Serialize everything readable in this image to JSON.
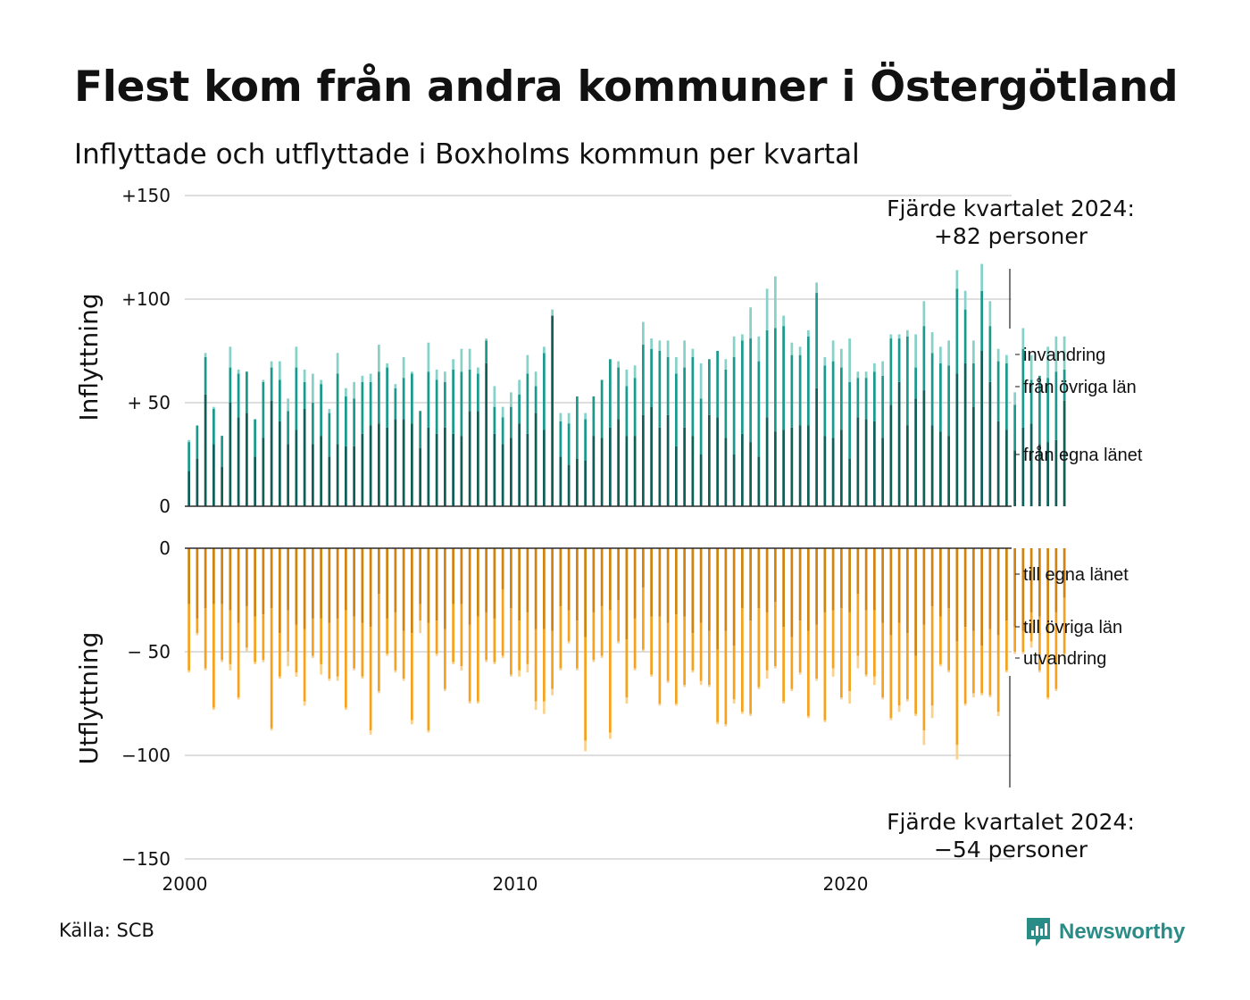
{
  "title": "Flest kom från andra kommuner i Östergötland",
  "subtitle": "Inflyttade och utflyttade i Boxholms kommun per kvartal",
  "source": "Källa: SCB",
  "logo": {
    "text": "Newsworthy",
    "icon": "newsworthy-logo-icon",
    "color": "#2a8c86"
  },
  "annotations": {
    "top_line1": "Fjärde kvartalet 2024:",
    "top_line2": "+82 personer",
    "bottom_line1": "Fjärde kvartalet 2024:",
    "bottom_line2": "−54 personer"
  },
  "chart_data": [
    {
      "type": "bar",
      "stacked": true,
      "ylabel": "Inflyttning",
      "ylim": [
        0,
        150
      ],
      "yticks": [
        0,
        50,
        100,
        150
      ],
      "ytick_labels": [
        "0",
        "+ 50",
        "+100",
        "+150"
      ],
      "grid": true,
      "x_start": 2000.0,
      "x_step": 0.25,
      "legend_placement": "right",
      "colors": {
        "from_own_county": "#0f5e57",
        "from_other_counties": "#1a9a8c",
        "immigration": "#86d2c8"
      },
      "series": [
        {
          "name": "från egna länet",
          "key": "from_own_county",
          "values": [
            17,
            23,
            54,
            30,
            19,
            50,
            43,
            45,
            24,
            33,
            51,
            41,
            30,
            37,
            47,
            30,
            34,
            24,
            30,
            29,
            29,
            35,
            39,
            40,
            38,
            42,
            42,
            40,
            28,
            38,
            35,
            38,
            35,
            34,
            46,
            46,
            69,
            35,
            30,
            33,
            40,
            35,
            45,
            37,
            92,
            24,
            20,
            23,
            22,
            34,
            33,
            38,
            42,
            34,
            34,
            44,
            48,
            38,
            44,
            29,
            38,
            34,
            25,
            44,
            43,
            33,
            25,
            35,
            31,
            24,
            43,
            36,
            37,
            38,
            39,
            39,
            57,
            34,
            33,
            37,
            23,
            43,
            42,
            41,
            33,
            49,
            60,
            39,
            52,
            56,
            39,
            36,
            34,
            64,
            69,
            48,
            75,
            60,
            41,
            37,
            27,
            38,
            40,
            30,
            31,
            32,
            51
          ]
        },
        {
          "name": "från övriga län",
          "key": "from_other_counties",
          "values": [
            14,
            16,
            18,
            17,
            15,
            17,
            21,
            20,
            18,
            27,
            16,
            20,
            16,
            30,
            13,
            20,
            25,
            21,
            34,
            24,
            23,
            25,
            21,
            25,
            29,
            15,
            20,
            24,
            18,
            27,
            26,
            22,
            31,
            31,
            20,
            18,
            11,
            13,
            13,
            15,
            14,
            29,
            13,
            37,
            0,
            17,
            20,
            30,
            20,
            19,
            28,
            33,
            25,
            24,
            28,
            34,
            28,
            37,
            28,
            35,
            29,
            38,
            27,
            27,
            32,
            33,
            47,
            45,
            50,
            46,
            42,
            50,
            50,
            35,
            34,
            43,
            46,
            34,
            37,
            30,
            37,
            19,
            20,
            24,
            30,
            32,
            21,
            43,
            15,
            31,
            35,
            33,
            34,
            41,
            26,
            21,
            29,
            27,
            29,
            32,
            22,
            38,
            21,
            33,
            31,
            33,
            15
          ]
        },
        {
          "name": "invandring",
          "key": "immigration",
          "values": [
            1,
            0,
            2,
            1,
            0,
            10,
            2,
            0,
            0,
            1,
            3,
            9,
            6,
            10,
            6,
            14,
            2,
            2,
            10,
            4,
            8,
            3,
            4,
            13,
            2,
            2,
            10,
            1,
            0,
            14,
            5,
            5,
            5,
            11,
            10,
            3,
            1,
            10,
            5,
            7,
            7,
            9,
            7,
            3,
            3,
            4,
            5,
            0,
            3,
            0,
            0,
            0,
            3,
            8,
            6,
            11,
            5,
            5,
            8,
            8,
            13,
            4,
            17,
            0,
            0,
            5,
            10,
            3,
            15,
            12,
            20,
            25,
            5,
            6,
            4,
            3,
            5,
            4,
            10,
            9,
            21,
            3,
            3,
            4,
            7,
            2,
            2,
            3,
            16,
            12,
            10,
            8,
            12,
            9,
            9,
            11,
            13,
            12,
            6,
            4,
            6,
            10,
            12,
            0,
            15,
            17,
            16
          ]
        }
      ]
    },
    {
      "type": "bar",
      "stacked": true,
      "ylabel": "Utflyttning",
      "ylim": [
        -150,
        0
      ],
      "yticks": [
        0,
        -50,
        -100,
        -150
      ],
      "ytick_labels": [
        "0",
        "− 50",
        "−100",
        "−150"
      ],
      "grid": true,
      "x_start": 2000.0,
      "x_step": 0.25,
      "xticks": [
        2000,
        2010,
        2020
      ],
      "xtick_labels": [
        "2000",
        "2010",
        "2020"
      ],
      "legend_placement": "right",
      "colors": {
        "to_own_county": "#d1830f",
        "to_other_counties": "#f5a21f",
        "emigration": "#f9d18b"
      },
      "series": [
        {
          "name": "till egna länet",
          "key": "to_own_county",
          "values": [
            -27,
            -34,
            -29,
            -27,
            -27,
            -30,
            -36,
            -28,
            -33,
            -32,
            -29,
            -41,
            -30,
            -37,
            -39,
            -34,
            -34,
            -36,
            -34,
            -30,
            -33,
            -36,
            -38,
            -22,
            -34,
            -31,
            -40,
            -41,
            -27,
            -36,
            -35,
            -39,
            -27,
            -27,
            -37,
            -33,
            -31,
            -34,
            -20,
            -29,
            -35,
            -31,
            -39,
            -39,
            -40,
            -28,
            -30,
            -35,
            -43,
            -31,
            -28,
            -30,
            -25,
            -44,
            -34,
            -19,
            -33,
            -33,
            -36,
            -32,
            -33,
            -41,
            -36,
            -40,
            -49,
            -40,
            -47,
            -29,
            -35,
            -29,
            -31,
            -26,
            -38,
            -43,
            -35,
            -40,
            -37,
            -31,
            -30,
            -29,
            -31,
            -22,
            -30,
            -30,
            -36,
            -42,
            -36,
            -41,
            -52,
            -37,
            -28,
            -33,
            -29,
            -45,
            -38,
            -40,
            -47,
            -39,
            -42,
            -35,
            -38,
            -40,
            -31,
            -33,
            -41,
            -31,
            -24
          ]
        },
        {
          "name": "till övriga län",
          "key": "to_other_counties",
          "values": [
            -32,
            -7,
            -29,
            -50,
            -27,
            -26,
            -36,
            -20,
            -22,
            -22,
            -58,
            -21,
            -20,
            -23,
            -35,
            -18,
            -22,
            -27,
            -28,
            -47,
            -25,
            -26,
            -50,
            -47,
            -17,
            -28,
            -23,
            -42,
            -8,
            -52,
            -16,
            -29,
            -28,
            -30,
            -37,
            -41,
            -23,
            -21,
            -32,
            -32,
            -24,
            -25,
            -35,
            -35,
            -28,
            -30,
            -15,
            -23,
            -50,
            -23,
            -24,
            -59,
            -20,
            -28,
            -24,
            -30,
            -28,
            -42,
            -28,
            -43,
            -33,
            -18,
            -28,
            -26,
            -35,
            -45,
            -26,
            -50,
            -45,
            -38,
            -28,
            -31,
            -36,
            -25,
            -25,
            -41,
            -26,
            -52,
            -28,
            -43,
            -38,
            -30,
            -31,
            -32,
            -36,
            -40,
            -40,
            -32,
            -28,
            -51,
            -48,
            -23,
            -30,
            -50,
            -37,
            -30,
            -23,
            -32,
            -37,
            -24,
            -12,
            -10,
            -14,
            -26,
            -31,
            -37,
            -27
          ]
        },
        {
          "name": "utvandring",
          "key": "emigration",
          "values": [
            -1,
            -1,
            -1,
            -1,
            -1,
            -3,
            -1,
            -2,
            -1,
            -1,
            -1,
            -1,
            -7,
            -2,
            -2,
            -1,
            -5,
            -1,
            -2,
            -1,
            -1,
            -1,
            -2,
            -1,
            -1,
            -1,
            -1,
            -2,
            -6,
            -1,
            -1,
            -1,
            -1,
            -2,
            -1,
            -1,
            -1,
            -1,
            -1,
            -1,
            -3,
            -4,
            -4,
            -6,
            -3,
            -1,
            -1,
            -1,
            -5,
            -1,
            -1,
            -3,
            -1,
            -3,
            -1,
            -1,
            -1,
            -1,
            -1,
            -1,
            -1,
            -1,
            -2,
            -1,
            -1,
            -1,
            -2,
            -1,
            -1,
            -1,
            -4,
            -1,
            -1,
            -1,
            -1,
            -1,
            -1,
            -1,
            -4,
            -1,
            -6,
            -6,
            -1,
            -4,
            -1,
            -1,
            -3,
            -1,
            -1,
            -7,
            -6,
            -1,
            -1,
            -7,
            -1,
            -2,
            -1,
            -1,
            -2,
            -1,
            -1,
            -1,
            -3,
            -1,
            -1,
            -1,
            -3
          ]
        }
      ]
    }
  ]
}
